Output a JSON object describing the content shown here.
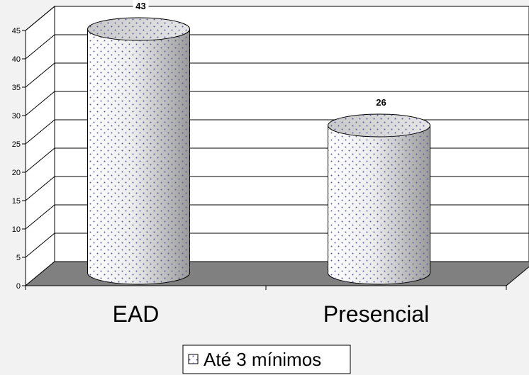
{
  "chart_data": {
    "type": "bar",
    "style": "3d-cylinder",
    "categories": [
      "EAD",
      "Presencial"
    ],
    "series": [
      {
        "name": "Até 3 mínimos",
        "values": [
          43,
          26
        ]
      }
    ],
    "ylim": [
      0,
      45
    ],
    "yticks": [
      "0",
      "5",
      "10",
      "15",
      "20",
      "25",
      "30",
      "35",
      "40",
      "45"
    ],
    "grid": true,
    "legend_position": "bottom",
    "colors": {
      "background": "#f2f2f2",
      "plot_wall": "#ffffff",
      "floor": "#808080",
      "bar_dots": "#5a5aa8"
    }
  }
}
